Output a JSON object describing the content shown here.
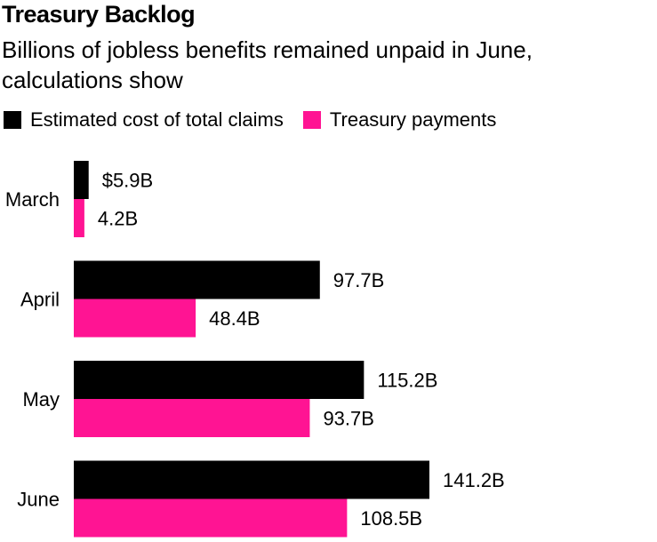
{
  "chart_data": {
    "type": "bar",
    "orientation": "horizontal",
    "title": "Treasury Backlog",
    "subtitle": "Billions of jobless benefits remained unpaid in June, calculations show",
    "categories": [
      "March",
      "April",
      "May",
      "June"
    ],
    "series": [
      {
        "name": "Estimated cost of total claims",
        "color": "#000000",
        "values": [
          5.9,
          97.7,
          115.2,
          141.2
        ],
        "labels": [
          "$5.9B",
          "97.7B",
          "115.2B",
          "141.2B"
        ]
      },
      {
        "name": "Treasury payments",
        "color": "#ff1493",
        "values": [
          4.2,
          48.4,
          93.7,
          108.5
        ],
        "labels": [
          "4.2B",
          "48.4B",
          "93.7B",
          "108.5B"
        ]
      }
    ],
    "xlim": [
      0,
      141.2
    ],
    "grid": false,
    "legend_position": "top-left"
  }
}
